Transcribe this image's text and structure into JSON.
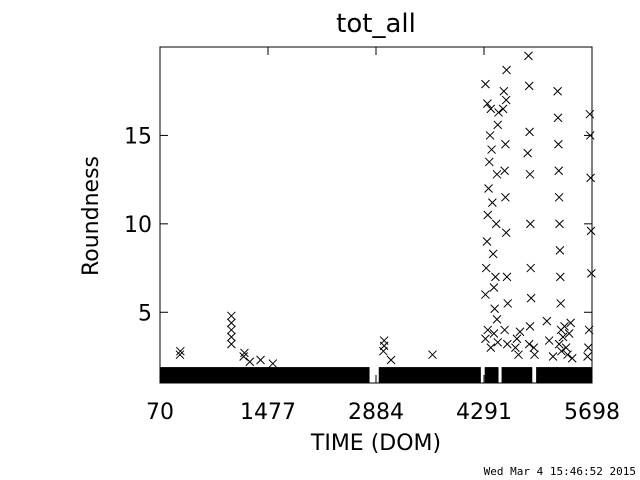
{
  "chart_data": {
    "type": "scatter",
    "title": "tot_all",
    "xlabel": "TIME (DOM)",
    "ylabel": "Roundness",
    "xlim": [
      70,
      5698
    ],
    "ylim": [
      1,
      20
    ],
    "x_ticks": [
      70,
      1477,
      2884,
      4291,
      5698
    ],
    "x_tick_labels": [
      "70",
      "1477",
      "2884",
      "4291",
      "5698"
    ],
    "y_ticks": [
      5,
      10,
      15
    ],
    "y_tick_labels": [
      "5",
      "10",
      "15"
    ],
    "marker": "x",
    "color": "#000000",
    "grid": false,
    "baseline_band": {
      "x_ranges": [
        [
          70,
          2800
        ],
        [
          2920,
          4250
        ],
        [
          4300,
          4480
        ],
        [
          4520,
          4920
        ],
        [
          4970,
          5698
        ]
      ],
      "y_range": [
        1.0,
        1.9
      ]
    },
    "points": [
      [
        330,
        2.6
      ],
      [
        335,
        2.8
      ],
      [
        1000,
        3.2
      ],
      [
        1000,
        3.6
      ],
      [
        1000,
        4.0
      ],
      [
        1000,
        4.4
      ],
      [
        1000,
        4.8
      ],
      [
        1160,
        2.5
      ],
      [
        1170,
        2.7
      ],
      [
        1240,
        2.2
      ],
      [
        1380,
        2.3
      ],
      [
        1540,
        2.1
      ],
      [
        2980,
        2.8
      ],
      [
        2990,
        3.1
      ],
      [
        2990,
        3.4
      ],
      [
        3080,
        2.3
      ],
      [
        3620,
        2.6
      ],
      [
        4310,
        6.0
      ],
      [
        4320,
        7.5
      ],
      [
        4330,
        9.0
      ],
      [
        4340,
        10.5
      ],
      [
        4350,
        12.0
      ],
      [
        4360,
        13.5
      ],
      [
        4370,
        15.0
      ],
      [
        4380,
        16.5
      ],
      [
        4310,
        17.9
      ],
      [
        4335,
        16.8
      ],
      [
        4390,
        14.2
      ],
      [
        4400,
        11.2
      ],
      [
        4410,
        8.3
      ],
      [
        4420,
        6.4
      ],
      [
        4430,
        5.2
      ],
      [
        4440,
        7.0
      ],
      [
        4450,
        10.0
      ],
      [
        4460,
        12.8
      ],
      [
        4470,
        15.6
      ],
      [
        4480,
        16.3
      ],
      [
        4460,
        4.6
      ],
      [
        4310,
        3.5
      ],
      [
        4340,
        4.0
      ],
      [
        4380,
        3.0
      ],
      [
        4420,
        3.8
      ],
      [
        4470,
        3.3
      ],
      [
        4560,
        13.0
      ],
      [
        4570,
        11.5
      ],
      [
        4580,
        9.5
      ],
      [
        4590,
        7.0
      ],
      [
        4600,
        5.5
      ],
      [
        4570,
        14.5
      ],
      [
        4580,
        17.0
      ],
      [
        4585,
        18.7
      ],
      [
        4560,
        4.0
      ],
      [
        4595,
        3.2
      ],
      [
        4540,
        16.5
      ],
      [
        4550,
        17.5
      ],
      [
        4700,
        3.0
      ],
      [
        4720,
        3.5
      ],
      [
        4740,
        2.6
      ],
      [
        4760,
        3.9
      ],
      [
        4870,
        19.5
      ],
      [
        4880,
        17.8
      ],
      [
        4885,
        15.2
      ],
      [
        4890,
        12.8
      ],
      [
        4895,
        10.0
      ],
      [
        4900,
        7.5
      ],
      [
        4905,
        5.8
      ],
      [
        4890,
        4.2
      ],
      [
        4880,
        3.2
      ],
      [
        4860,
        14.0
      ],
      [
        4940,
        3.0
      ],
      [
        4950,
        2.6
      ],
      [
        5110,
        4.5
      ],
      [
        5140,
        3.4
      ],
      [
        5190,
        2.5
      ],
      [
        5250,
        17.5
      ],
      [
        5255,
        16.0
      ],
      [
        5260,
        14.5
      ],
      [
        5265,
        13.0
      ],
      [
        5270,
        11.5
      ],
      [
        5275,
        10.0
      ],
      [
        5280,
        8.5
      ],
      [
        5285,
        7.0
      ],
      [
        5290,
        5.5
      ],
      [
        5295,
        4.0
      ],
      [
        5270,
        3.2
      ],
      [
        5300,
        2.8
      ],
      [
        5320,
        3.6
      ],
      [
        5340,
        4.2
      ],
      [
        5360,
        3.0
      ],
      [
        5380,
        2.6
      ],
      [
        5400,
        3.8
      ],
      [
        5420,
        4.4
      ],
      [
        5440,
        2.4
      ],
      [
        5670,
        16.2
      ],
      [
        5675,
        15.0
      ],
      [
        5680,
        12.6
      ],
      [
        5685,
        9.6
      ],
      [
        5690,
        7.2
      ],
      [
        5660,
        4.0
      ],
      [
        5650,
        3.0
      ],
      [
        5640,
        2.5
      ]
    ]
  },
  "footer": {
    "timestamp": "Wed Mar  4 15:46:52 2015"
  }
}
